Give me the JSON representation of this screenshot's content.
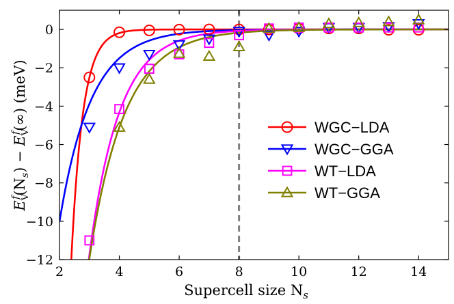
{
  "chart_data": {
    "type": "line",
    "title": "",
    "xlabel": "Supercell size N",
    "xlabel_sub": "s",
    "ylabel": {
      "lead": "E",
      "sub1": "V",
      "sup1": "f",
      "arg1": "(N",
      "arg1_sub": "s",
      "arg1_close": ") − ",
      "sub2": "V",
      "sup2": "f",
      "arg2": "(∞) (meV)"
    },
    "xlim": [
      2,
      15
    ],
    "ylim": [
      -12,
      1
    ],
    "xticks": [
      "2",
      "4",
      "6",
      "8",
      "10",
      "12",
      "14"
    ],
    "yticks": [
      "0",
      "−2",
      "−4",
      "−6",
      "−8",
      "−10",
      "−12"
    ],
    "xtick_values": [
      2,
      4,
      6,
      8,
      10,
      12,
      14
    ],
    "ytick_values": [
      0,
      -2,
      -4,
      -6,
      -8,
      -10,
      -12
    ],
    "grid": false,
    "legend_position": "center-right",
    "reference_line": {
      "x": 8,
      "style": "dashed",
      "color": "#808080"
    },
    "series": [
      {
        "name": "WGC−LDA",
        "color": "#ff0000",
        "marker": "circle",
        "x": [
          3,
          4,
          5,
          6,
          7,
          8,
          9,
          10,
          11,
          12,
          13,
          14
        ],
        "y": [
          -2.5,
          -0.15,
          -0.05,
          -0.01,
          0.0,
          0.0,
          0.0,
          0.05,
          0.05,
          0.05,
          -0.02,
          -0.02
        ],
        "fit": {
          "A": 5930,
          "k": 2.59
        }
      },
      {
        "name": "WGC−GGA",
        "color": "#0000ff",
        "marker": "triangle-down",
        "x": [
          3,
          4,
          5,
          6,
          7,
          8,
          9,
          10,
          11,
          12,
          13,
          14
        ],
        "y": [
          -5.1,
          -2.0,
          -1.3,
          -0.8,
          -0.5,
          -0.1,
          -0.3,
          -0.1,
          0.1,
          0.1,
          0.15,
          0.3
        ],
        "fit": {
          "A": 66.9,
          "k": 0.949
        }
      },
      {
        "name": "WT−LDA",
        "color": "#ff00ff",
        "marker": "square",
        "x": [
          3,
          4,
          5,
          6,
          7,
          8,
          9,
          10,
          11,
          12,
          13,
          14
        ],
        "y": [
          -11.0,
          -4.15,
          -2.05,
          -1.3,
          -0.7,
          -0.3,
          0.05,
          0.1,
          0.1,
          0.1,
          0.1,
          0.1
        ],
        "fit": {
          "A": 236,
          "k": 1.0
        }
      },
      {
        "name": "WT−GGA",
        "color": "#808000",
        "marker": "triangle-up",
        "x": [
          4,
          5,
          6,
          7,
          8,
          9,
          10,
          11,
          12,
          13,
          14
        ],
        "y": [
          -5.1,
          -2.6,
          -1.25,
          -1.4,
          -0.9,
          0.05,
          0.1,
          0.3,
          0.35,
          0.4,
          0.5
        ],
        "fit": {
          "A": 153,
          "k": 0.85
        }
      }
    ]
  }
}
